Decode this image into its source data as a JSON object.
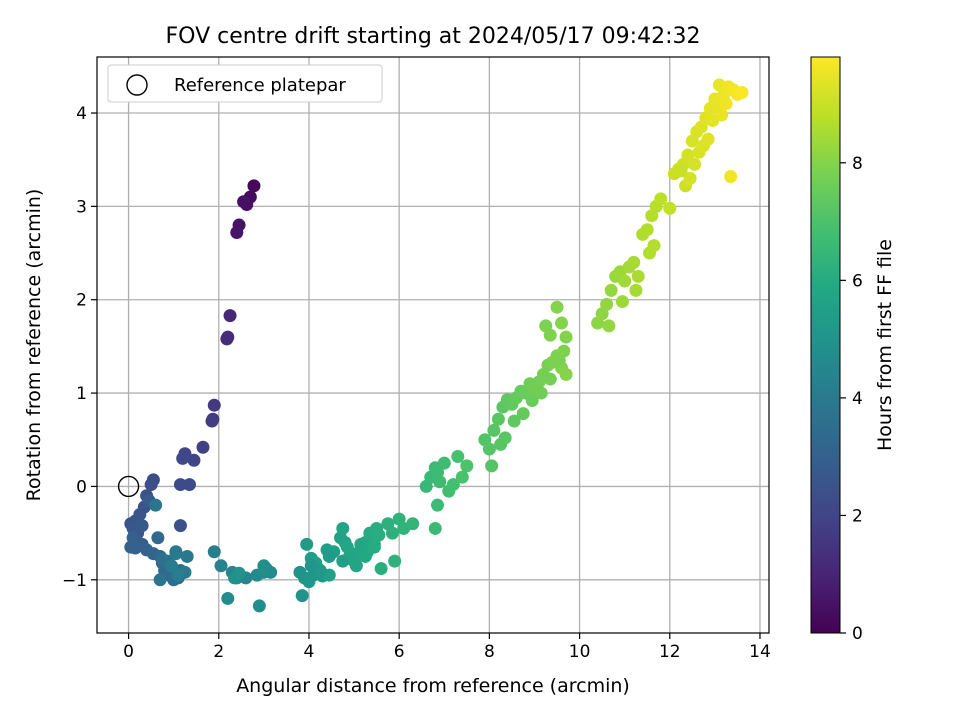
{
  "chart_data": {
    "type": "scatter",
    "title": "FOV centre drift starting at 2024/05/17 09:42:32",
    "xlabel": "Angular distance from reference (arcmin)",
    "ylabel": "Rotation from reference (arcmin)",
    "xlim": [
      -0.7,
      14.2
    ],
    "ylim": [
      -1.57,
      4.6
    ],
    "x_ticks": [
      0,
      2,
      4,
      6,
      8,
      10,
      12,
      14
    ],
    "y_ticks": [
      -1,
      0,
      1,
      2,
      3,
      4
    ],
    "grid": true,
    "legend": {
      "position": "top-left",
      "entries": [
        "Reference platepar"
      ]
    },
    "reference_point": {
      "name": "Reference platepar",
      "x": 0,
      "y": 0,
      "marker": "open-circle"
    },
    "colorbar": {
      "label": "Hours from first FF file",
      "min": 0,
      "max": 9.8,
      "ticks": [
        0,
        2,
        4,
        6,
        8
      ],
      "colormap": "viridis"
    },
    "series": [
      {
        "x": [
          2.78,
          2.7,
          2.62,
          2.55,
          2.45,
          2.4,
          2.25,
          2.18,
          2.2,
          1.9,
          1.87,
          1.85,
          1.65,
          1.45,
          1.25,
          1.2,
          1.15,
          1.35,
          1.15,
          0.55,
          0.5,
          0.4,
          0.35,
          0.25,
          0.15,
          0.05,
          0.1,
          0.2,
          0.3,
          0.45,
          0.3,
          0.2,
          0.1,
          0.05,
          0.15,
          0.4,
          0.55,
          0.7,
          0.75,
          0.65,
          0.8,
          0.9,
          1.0,
          1.1,
          1.15,
          0.95,
          0.85,
          0.75,
          0.7,
          0.6,
          1.05,
          1.3,
          1.25,
          1.05,
          0.95,
          1.1,
          1.9,
          2.05,
          2.3,
          2.4,
          2.6,
          2.85,
          3.05,
          3.15,
          2.2,
          2.9,
          3.0,
          3.0,
          2.35,
          2.45,
          3.8,
          3.9,
          4.0,
          4.1,
          4.2,
          4.3,
          3.95,
          4.05,
          4.15,
          4.4,
          4.45,
          4.55,
          4.7,
          4.8,
          4.9,
          4.75,
          4.85,
          5.0,
          5.1,
          5.2,
          5.3,
          5.4,
          5.5,
          5.6,
          5.25,
          5.15,
          5.05,
          4.95,
          5.35,
          5.45,
          5.55,
          5.75,
          5.9,
          6.0,
          6.1,
          6.3,
          5.85,
          3.85,
          4.05,
          4.25,
          4.45,
          4.75,
          5.05,
          5.25,
          5.45,
          6.6,
          6.7,
          6.8,
          6.85,
          6.9,
          7.0,
          7.1,
          7.2,
          7.3,
          7.4,
          7.5,
          6.8,
          6.85,
          7.9,
          8.0,
          8.1,
          8.2,
          8.3,
          8.4,
          8.5,
          8.6,
          8.7,
          8.8,
          8.9,
          9.0,
          9.1,
          9.2,
          9.3,
          9.4,
          9.5,
          9.6,
          9.7,
          8.25,
          8.35,
          8.55,
          8.75,
          8.95,
          9.15,
          9.35,
          9.55,
          9.65,
          9.7,
          9.6,
          9.5,
          9.35,
          9.25,
          8.05,
          10.4,
          10.5,
          10.6,
          10.7,
          10.8,
          10.9,
          11.0,
          11.1,
          11.2,
          11.3,
          10.65,
          10.95,
          11.25,
          11.4,
          11.5,
          11.6,
          11.7,
          11.8,
          11.65,
          11.55,
          12.0,
          12.1,
          12.2,
          12.3,
          12.4,
          12.5,
          12.6,
          12.7,
          12.8,
          12.9,
          13.0,
          13.1,
          13.2,
          13.3,
          13.4,
          13.5,
          13.6,
          12.35,
          12.45,
          12.55,
          12.65,
          12.75,
          12.85,
          12.95,
          13.05,
          13.15,
          13.25,
          13.35,
          12.25
        ],
        "y": [
          3.22,
          3.1,
          3.02,
          3.05,
          2.8,
          2.72,
          1.83,
          1.58,
          1.6,
          0.87,
          0.72,
          0.7,
          0.42,
          0.28,
          0.35,
          0.3,
          0.02,
          0.02,
          -0.42,
          0.07,
          0.02,
          -0.1,
          -0.22,
          -0.3,
          -0.37,
          -0.4,
          -0.45,
          -0.5,
          -0.42,
          -0.15,
          -0.62,
          -0.6,
          -0.55,
          -0.65,
          -0.66,
          -0.68,
          -0.72,
          -0.75,
          -0.82,
          -0.55,
          -0.9,
          -0.95,
          -1.0,
          -0.98,
          -0.9,
          -0.85,
          -0.8,
          -0.78,
          -1.0,
          -0.2,
          -0.7,
          -0.75,
          -0.92,
          -0.72,
          -0.85,
          -0.95,
          -0.7,
          -0.85,
          -0.92,
          -0.98,
          -0.98,
          -0.95,
          -0.88,
          -0.92,
          -1.2,
          -1.28,
          -0.92,
          -0.85,
          -0.98,
          -0.93,
          -0.92,
          -0.98,
          -1.02,
          -0.95,
          -0.88,
          -0.96,
          -0.62,
          -0.77,
          -0.82,
          -0.68,
          -0.95,
          -0.7,
          -0.55,
          -0.6,
          -0.75,
          -0.45,
          -0.65,
          -0.8,
          -0.72,
          -0.68,
          -0.7,
          -0.55,
          -0.45,
          -0.88,
          -0.6,
          -0.62,
          -0.72,
          -0.78,
          -0.5,
          -0.62,
          -0.52,
          -0.4,
          -0.8,
          -0.35,
          -0.45,
          -0.4,
          -0.5,
          -1.17,
          -0.85,
          -0.9,
          -0.75,
          -0.8,
          -0.85,
          -0.75,
          -0.65,
          0.0,
          0.1,
          0.2,
          0.15,
          0.05,
          0.25,
          -0.05,
          0.02,
          0.32,
          0.1,
          0.22,
          -0.45,
          -0.2,
          0.5,
          0.4,
          0.6,
          0.72,
          0.85,
          0.93,
          0.88,
          0.95,
          1.02,
          1.0,
          1.1,
          1.05,
          1.12,
          1.2,
          1.3,
          1.33,
          1.4,
          1.27,
          1.2,
          0.45,
          0.52,
          0.7,
          0.78,
          0.92,
          1.0,
          1.15,
          1.35,
          1.45,
          1.6,
          1.75,
          1.92,
          1.62,
          1.72,
          0.22,
          1.75,
          1.85,
          1.95,
          2.1,
          2.25,
          2.3,
          2.2,
          2.35,
          2.4,
          2.25,
          1.72,
          1.98,
          2.1,
          2.7,
          2.75,
          2.9,
          3.0,
          3.08,
          2.58,
          2.5,
          2.98,
          3.35,
          3.4,
          3.45,
          3.55,
          3.7,
          3.8,
          3.85,
          3.95,
          4.05,
          4.15,
          4.3,
          4.2,
          4.28,
          4.25,
          4.2,
          4.22,
          3.22,
          3.3,
          3.45,
          3.58,
          3.65,
          3.72,
          3.92,
          4.08,
          3.98,
          4.1,
          3.32,
          3.38
        ],
        "t": [
          0.2,
          0.3,
          0.4,
          0.45,
          0.5,
          0.55,
          1.1,
          1.2,
          1.25,
          1.6,
          1.65,
          1.7,
          1.9,
          2.0,
          2.05,
          2.1,
          2.2,
          2.25,
          2.4,
          2.3,
          2.35,
          2.4,
          2.45,
          2.5,
          2.55,
          2.6,
          2.65,
          2.7,
          2.75,
          2.8,
          2.85,
          2.9,
          2.95,
          3.0,
          3.05,
          3.1,
          3.15,
          3.2,
          3.25,
          3.3,
          3.35,
          3.4,
          3.45,
          3.5,
          3.55,
          3.6,
          3.65,
          3.7,
          3.75,
          3.8,
          3.85,
          3.9,
          3.95,
          4.0,
          4.05,
          4.1,
          4.2,
          4.3,
          4.4,
          4.45,
          4.5,
          4.55,
          4.6,
          4.65,
          4.7,
          4.75,
          4.8,
          4.85,
          4.9,
          4.95,
          5.0,
          5.05,
          5.1,
          5.15,
          5.2,
          5.25,
          5.3,
          5.35,
          5.4,
          5.45,
          5.5,
          5.55,
          5.6,
          5.65,
          5.7,
          5.75,
          5.8,
          5.85,
          5.9,
          5.95,
          6.0,
          6.05,
          6.1,
          6.15,
          5.9,
          5.85,
          5.8,
          5.75,
          6.0,
          6.05,
          6.1,
          6.2,
          6.25,
          6.3,
          6.35,
          6.4,
          6.2,
          5.0,
          5.1,
          5.2,
          5.3,
          5.5,
          5.7,
          5.9,
          6.0,
          6.5,
          6.55,
          6.6,
          6.65,
          6.7,
          6.75,
          6.8,
          6.85,
          6.9,
          6.95,
          7.0,
          6.6,
          6.65,
          7.1,
          7.15,
          7.2,
          7.25,
          7.3,
          7.35,
          7.4,
          7.45,
          7.5,
          7.55,
          7.6,
          7.65,
          7.7,
          7.75,
          7.8,
          7.85,
          7.9,
          7.95,
          8.0,
          7.2,
          7.25,
          7.35,
          7.45,
          7.55,
          7.65,
          7.75,
          7.85,
          7.9,
          7.95,
          8.0,
          8.0,
          7.9,
          7.85,
          7.15,
          8.1,
          8.15,
          8.2,
          8.25,
          8.3,
          8.35,
          8.4,
          8.45,
          8.5,
          8.55,
          8.2,
          8.35,
          8.5,
          8.6,
          8.65,
          8.7,
          8.75,
          8.8,
          8.7,
          8.65,
          8.9,
          9.0,
          9.05,
          9.1,
          9.15,
          9.2,
          9.25,
          9.3,
          9.35,
          9.4,
          9.45,
          9.5,
          9.55,
          9.6,
          9.65,
          9.7,
          9.75,
          9.1,
          9.15,
          9.2,
          9.25,
          9.3,
          9.35,
          9.4,
          9.45,
          9.5,
          9.55,
          9.6,
          9.0
        ]
      }
    ]
  }
}
